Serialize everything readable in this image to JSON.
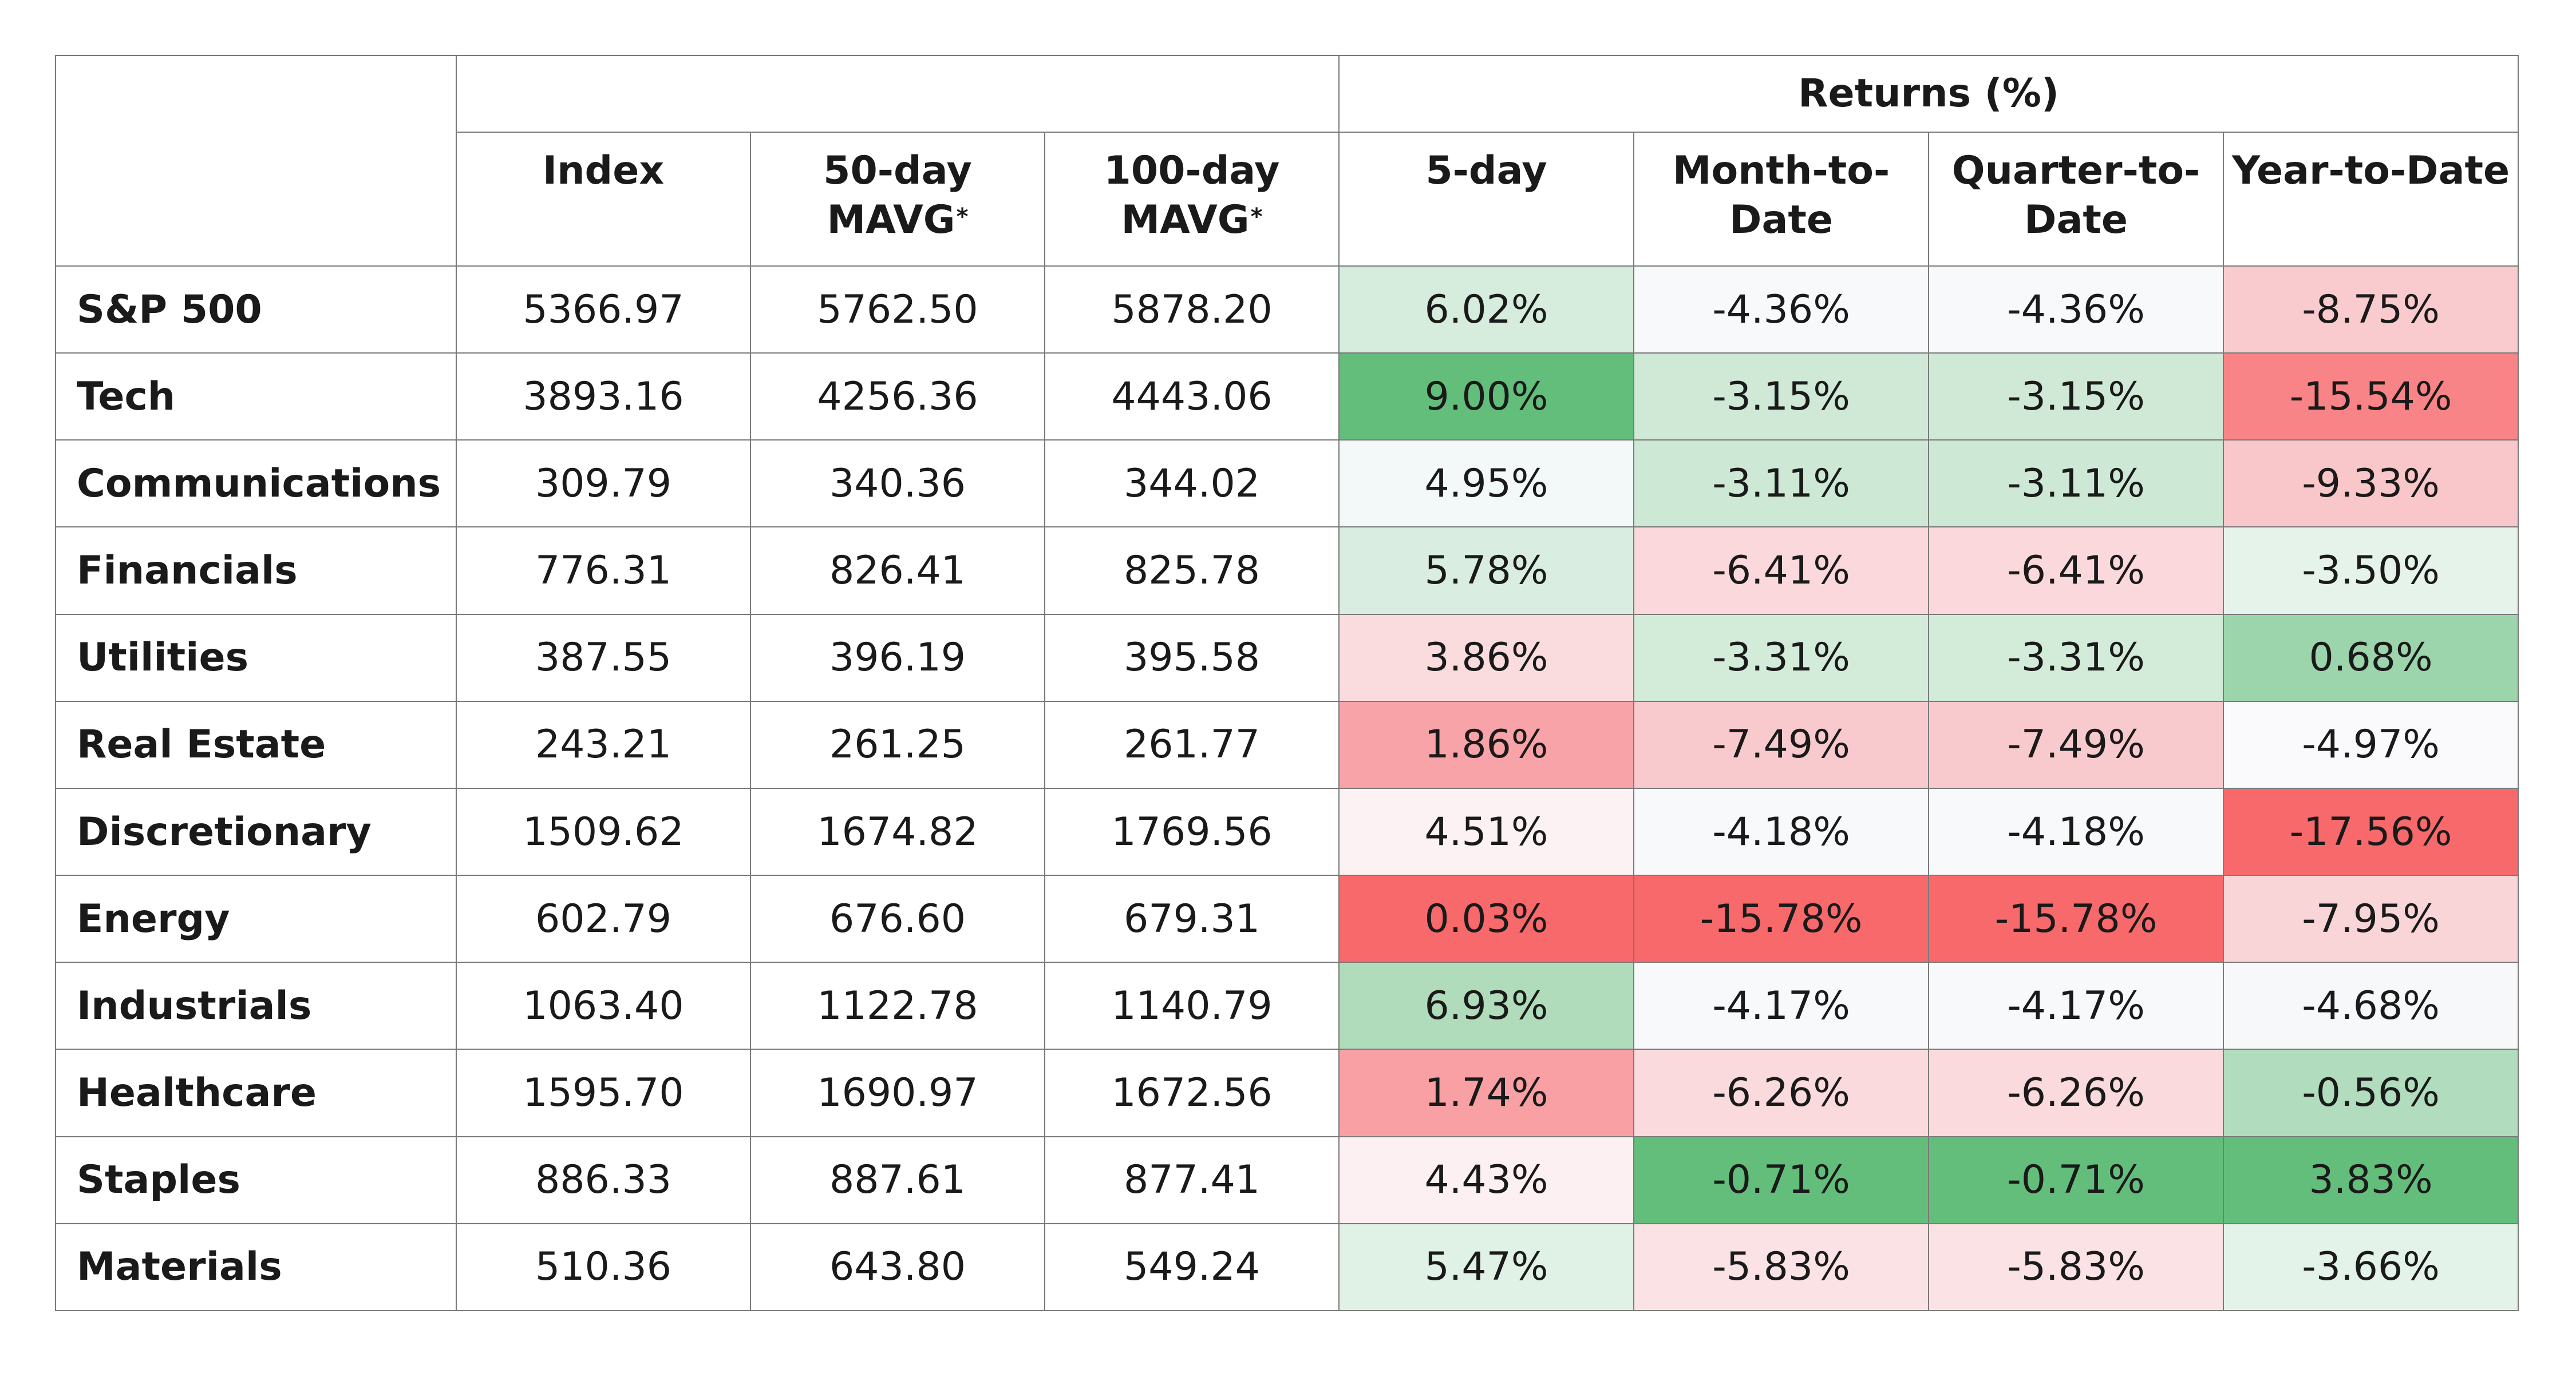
{
  "chart_data": {
    "type": "table",
    "group_header": "Returns (%)",
    "columns": [
      {
        "key": "index",
        "label": "Index",
        "asterisk": false
      },
      {
        "key": "mavg50",
        "label": "50-day MAVG",
        "line1": "50-day",
        "line2": "MAVG",
        "asterisk": true
      },
      {
        "key": "mavg100",
        "label": "100-day MAVG",
        "line1": "100-day",
        "line2": "MAVG",
        "asterisk": true
      },
      {
        "key": "d5",
        "label": "5-day",
        "line1": "5-day",
        "line2": "",
        "asterisk": false
      },
      {
        "key": "mtd",
        "label": "Month-to-Date",
        "line1": "Month-to-",
        "line2": "Date",
        "asterisk": false
      },
      {
        "key": "qtd",
        "label": "Quarter-to-Date",
        "line1": "Quarter-to-",
        "line2": "Date",
        "asterisk": false
      },
      {
        "key": "ytd",
        "label": "Year-to-Date",
        "line1": "Year-to-Date",
        "line2": "",
        "asterisk": false
      }
    ],
    "asterisk_mark": "*",
    "rows": [
      {
        "sector": "S&P 500",
        "index": "5366.97",
        "mavg50": "5762.50",
        "mavg100": "5878.20",
        "d5": "6.02%",
        "mtd": "-4.36%",
        "qtd": "-4.36%",
        "ytd": "-8.75%"
      },
      {
        "sector": "Tech",
        "index": "3893.16",
        "mavg50": "4256.36",
        "mavg100": "4443.06",
        "d5": "9.00%",
        "mtd": "-3.15%",
        "qtd": "-3.15%",
        "ytd": "-15.54%"
      },
      {
        "sector": "Communications",
        "index": "309.79",
        "mavg50": "340.36",
        "mavg100": "344.02",
        "d5": "4.95%",
        "mtd": "-3.11%",
        "qtd": "-3.11%",
        "ytd": "-9.33%"
      },
      {
        "sector": "Financials",
        "index": "776.31",
        "mavg50": "826.41",
        "mavg100": "825.78",
        "d5": "5.78%",
        "mtd": "-6.41%",
        "qtd": "-6.41%",
        "ytd": "-3.50%"
      },
      {
        "sector": "Utilities",
        "index": "387.55",
        "mavg50": "396.19",
        "mavg100": "395.58",
        "d5": "3.86%",
        "mtd": "-3.31%",
        "qtd": "-3.31%",
        "ytd": "0.68%"
      },
      {
        "sector": "Real Estate",
        "index": "243.21",
        "mavg50": "261.25",
        "mavg100": "261.77",
        "d5": "1.86%",
        "mtd": "-7.49%",
        "qtd": "-7.49%",
        "ytd": "-4.97%"
      },
      {
        "sector": "Discretionary",
        "index": "1509.62",
        "mavg50": "1674.82",
        "mavg100": "1769.56",
        "d5": "4.51%",
        "mtd": "-4.18%",
        "qtd": "-4.18%",
        "ytd": "-17.56%"
      },
      {
        "sector": "Energy",
        "index": "602.79",
        "mavg50": "676.60",
        "mavg100": "679.31",
        "d5": "0.03%",
        "mtd": "-15.78%",
        "qtd": "-15.78%",
        "ytd": "-7.95%"
      },
      {
        "sector": "Industrials",
        "index": "1063.40",
        "mavg50": "1122.78",
        "mavg100": "1140.79",
        "d5": "6.93%",
        "mtd": "-4.17%",
        "qtd": "-4.17%",
        "ytd": "-4.68%"
      },
      {
        "sector": "Healthcare",
        "index": "1595.70",
        "mavg50": "1690.97",
        "mavg100": "1672.56",
        "d5": "1.74%",
        "mtd": "-6.26%",
        "qtd": "-6.26%",
        "ytd": "-0.56%"
      },
      {
        "sector": "Staples",
        "index": "886.33",
        "mavg50": "887.61",
        "mavg100": "877.41",
        "d5": "4.43%",
        "mtd": "-0.71%",
        "qtd": "-0.71%",
        "ytd": "3.83%"
      },
      {
        "sector": "Materials",
        "index": "510.36",
        "mavg50": "643.80",
        "mavg100": "549.24",
        "d5": "5.47%",
        "mtd": "-5.83%",
        "qtd": "-5.83%",
        "ytd": "-3.66%"
      }
    ],
    "cell_colors": {
      "d5": [
        "#d6ecdd",
        "#63be7b",
        "#f3f8f8",
        "#d9eee0",
        "#fadcdf",
        "#f8a3a7",
        "#fcf2f4",
        "#f8696b",
        "#b0dcbc",
        "#f8a0a4",
        "#fcf0f2",
        "#e0f1e6"
      ],
      "mtd": [
        "#f8f9fb",
        "#cfe9d6",
        "#cde9d5",
        "#fad8dc",
        "#d3ebd9",
        "#f9cacd",
        "#f8f9fb",
        "#f8696b",
        "#f8f9fb",
        "#fadadd",
        "#63be7b",
        "#fbe2e5"
      ],
      "qtd": [
        "#f8f9fb",
        "#cfe9d6",
        "#cde9d5",
        "#fad8dc",
        "#d3ebd9",
        "#f9cacd",
        "#f8f9fb",
        "#f8696b",
        "#f8f9fb",
        "#fadadd",
        "#63be7b",
        "#fbe2e5"
      ],
      "ytd": [
        "#f9cbce",
        "#f88487",
        "#f9c6c9",
        "#e5f3ea",
        "#9cd4ab",
        "#fafafc",
        "#f8696b",
        "#fad5d8",
        "#f6f8fa",
        "#b1dcbd",
        "#63be7b",
        "#e4f3e9"
      ]
    }
  }
}
